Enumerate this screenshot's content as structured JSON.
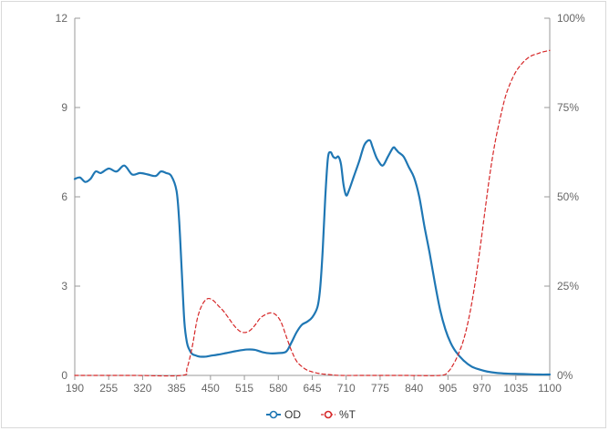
{
  "chart_data": {
    "type": "line",
    "title": "",
    "xlabel": "",
    "ylabel": "",
    "y2label": "",
    "xlim": [
      190,
      1100
    ],
    "ylim": [
      0,
      12
    ],
    "y2lim": [
      0,
      100
    ],
    "x_ticks": [
      "190",
      "255",
      "320",
      "385",
      "450",
      "515",
      "580",
      "645",
      "710",
      "775",
      "840",
      "905",
      "970",
      "1035",
      "1100"
    ],
    "y_ticks": [
      "0",
      "3",
      "6",
      "9",
      "12"
    ],
    "y2_ticks": [
      "0%",
      "25%",
      "50%",
      "75%",
      "100%"
    ],
    "legend_position": "bottom-center",
    "grid": false,
    "series": [
      {
        "name": "OD",
        "axis": "left",
        "color": "#1f77b4",
        "style": "solid",
        "x": [
          190,
          200,
          210,
          220,
          230,
          240,
          255,
          270,
          285,
          300,
          315,
          330,
          345,
          355,
          365,
          375,
          385,
          390,
          395,
          400,
          405,
          410,
          415,
          420,
          425,
          430,
          440,
          450,
          465,
          480,
          500,
          520,
          535,
          550,
          565,
          580,
          595,
          605,
          615,
          625,
          635,
          645,
          655,
          660,
          665,
          670,
          675,
          680,
          685,
          690,
          695,
          700,
          705,
          710,
          715,
          725,
          735,
          745,
          755,
          760,
          765,
          770,
          780,
          790,
          800,
          805,
          810,
          820,
          830,
          840,
          850,
          860,
          870,
          880,
          890,
          900,
          910,
          920,
          935,
          950,
          965,
          980,
          1000,
          1020,
          1040,
          1060,
          1080,
          1100
        ],
        "values": [
          6.6,
          6.65,
          6.5,
          6.6,
          6.85,
          6.8,
          6.95,
          6.85,
          7.05,
          6.75,
          6.8,
          6.75,
          6.7,
          6.85,
          6.8,
          6.7,
          6.2,
          5.2,
          3.5,
          1.8,
          1.1,
          0.85,
          0.72,
          0.68,
          0.65,
          0.63,
          0.63,
          0.66,
          0.7,
          0.75,
          0.82,
          0.87,
          0.86,
          0.78,
          0.74,
          0.75,
          0.8,
          1.1,
          1.45,
          1.7,
          1.8,
          1.95,
          2.3,
          2.9,
          4.2,
          6.0,
          7.3,
          7.5,
          7.35,
          7.3,
          7.35,
          7.1,
          6.4,
          6.05,
          6.2,
          6.7,
          7.2,
          7.75,
          7.9,
          7.7,
          7.45,
          7.25,
          7.05,
          7.35,
          7.65,
          7.6,
          7.5,
          7.35,
          7.0,
          6.65,
          6.0,
          5.0,
          4.1,
          3.1,
          2.2,
          1.55,
          1.1,
          0.8,
          0.5,
          0.3,
          0.2,
          0.13,
          0.08,
          0.06,
          0.05,
          0.04,
          0.03,
          0.03
        ]
      },
      {
        "name": "%T",
        "axis": "right",
        "color": "#d62728",
        "style": "dashed",
        "x": [
          190,
          300,
          395,
          405,
          415,
          425,
          435,
          445,
          455,
          465,
          475,
          485,
          495,
          505,
          515,
          525,
          535,
          545,
          555,
          565,
          575,
          585,
          595,
          605,
          615,
          625,
          635,
          645,
          660,
          680,
          700,
          750,
          820,
          890,
          905,
          915,
          925,
          935,
          945,
          955,
          965,
          975,
          985,
          995,
          1005,
          1015,
          1025,
          1035,
          1045,
          1055,
          1065,
          1075,
          1085,
          1100
        ],
        "values": [
          0,
          0,
          0,
          2,
          8,
          16,
          20,
          21.5,
          21,
          19.5,
          18,
          16,
          14,
          12.5,
          12,
          12.5,
          14,
          16,
          17,
          17.5,
          17,
          15,
          11,
          7,
          4,
          2.5,
          1.5,
          1,
          0.5,
          0.2,
          0,
          0,
          0,
          0,
          1,
          3,
          6,
          10,
          16,
          24,
          34,
          45,
          56,
          65,
          72,
          78,
          82,
          85,
          87,
          88.5,
          89.5,
          90,
          90.5,
          91
        ]
      }
    ]
  }
}
